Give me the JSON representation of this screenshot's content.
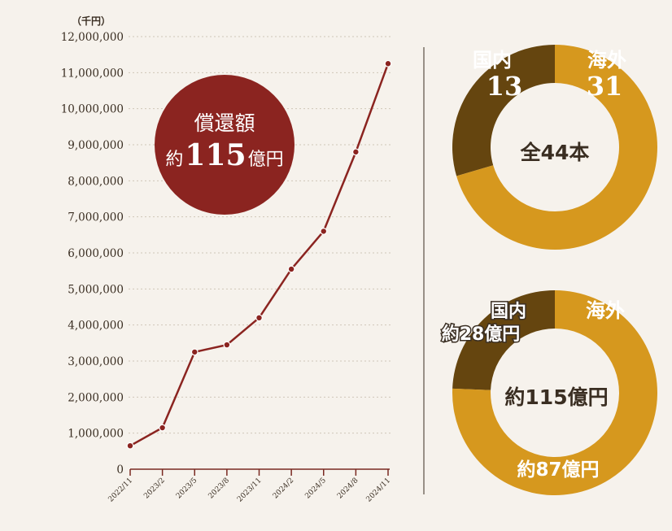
{
  "chart_data": [
    {
      "type": "line",
      "unit_label": "（千円）",
      "ylim": [
        0,
        12000000
      ],
      "y_ticks": [
        "0",
        "1,000,000",
        "2,000,000",
        "3,000,000",
        "4,000,000",
        "5,000,000",
        "6,000,000",
        "7,000,000",
        "8,000,000",
        "9,000,000",
        "10,000,000",
        "11,000,000",
        "12,000,000"
      ],
      "x_tick_labels": [
        "2022/11",
        "2023/2",
        "2023/5",
        "2023/8",
        "2023/11",
        "2024/2",
        "2024/5",
        "2024/8",
        "2024/11"
      ],
      "series": [
        {
          "color": "#8b2420",
          "values": [
            650000,
            1150000,
            3250000,
            3450000,
            4200000,
            5550000,
            6600000,
            8800000,
            11250000
          ]
        }
      ],
      "grid": true,
      "badge": {
        "title": "償還額",
        "prefix": "約",
        "number": "115",
        "suffix": "億円",
        "color": "#8b2420"
      }
    },
    {
      "type": "pie",
      "center_label": "全44本",
      "slices": [
        {
          "label": "国内",
          "value": 13,
          "value_text": "13",
          "color": "#65450f"
        },
        {
          "label": "海外",
          "value": 31,
          "value_text": "31",
          "color": "#d6981e"
        }
      ]
    },
    {
      "type": "pie",
      "center_label": "約115億円",
      "slices": [
        {
          "label": "国内",
          "value": 28,
          "value_text": "約28億円",
          "color": "#65450f"
        },
        {
          "label": "海外",
          "value": 87,
          "value_text": "約87億円",
          "color": "#d6981e"
        }
      ]
    }
  ]
}
